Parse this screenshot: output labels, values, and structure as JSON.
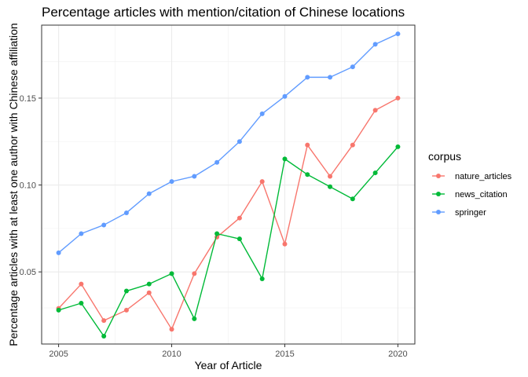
{
  "chart_data": {
    "type": "line",
    "title": "Percentage articles with mention/citation of Chinese locations",
    "xlabel": "Year of Article",
    "ylabel": "Percentage articles with at least one author with Chinese affiliation",
    "xlim": [
      2004.25,
      2020.75
    ],
    "ylim": [
      0.0085,
      0.192
    ],
    "xticks": [
      2005,
      2010,
      2015,
      2020
    ],
    "xtick_labels": [
      "2005",
      "2010",
      "2015",
      "2020"
    ],
    "yticks": [
      0.05,
      0.1,
      0.15
    ],
    "ytick_labels": [
      "0.05",
      "0.10",
      "0.15"
    ],
    "grid": true,
    "legend": {
      "title": "corpus",
      "placement": "right"
    },
    "x": [
      2005,
      2006,
      2007,
      2008,
      2009,
      2010,
      2011,
      2012,
      2013,
      2014,
      2015,
      2016,
      2017,
      2018,
      2019,
      2020
    ],
    "series": [
      {
        "name": "nature_articles",
        "color": "#F8766D",
        "values": [
          0.029,
          0.043,
          0.022,
          0.028,
          0.038,
          0.017,
          0.049,
          0.07,
          0.081,
          0.102,
          0.066,
          0.123,
          0.105,
          0.123,
          0.143,
          0.15
        ]
      },
      {
        "name": "news_citation",
        "color": "#00BA38",
        "values": [
          0.028,
          0.032,
          0.013,
          0.039,
          0.043,
          0.049,
          0.023,
          0.072,
          0.069,
          0.046,
          0.115,
          0.106,
          0.099,
          0.092,
          0.107,
          0.122
        ]
      },
      {
        "name": "springer",
        "color": "#619CFF",
        "values": [
          0.061,
          0.072,
          0.077,
          0.084,
          0.095,
          0.102,
          0.105,
          0.113,
          0.125,
          0.141,
          0.151,
          0.162,
          0.162,
          0.168,
          0.181,
          0.187
        ]
      }
    ]
  }
}
